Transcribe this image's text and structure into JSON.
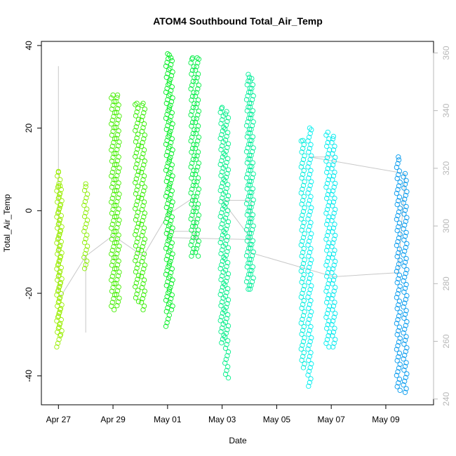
{
  "chart_data": {
    "type": "scatter",
    "title": "ATOM4 Southbound Total_Air_Temp",
    "xlabel": "Date",
    "ylabel": "Total_Air_Temp",
    "x_tick_labels": [
      "Apr 27",
      "Apr 29",
      "May 01",
      "May 03",
      "May 05",
      "May 07",
      "May 09"
    ],
    "x_ticks": [
      "2018-04-27",
      "2018-04-29",
      "2018-05-01",
      "2018-05-03",
      "2018-05-05",
      "2018-05-07",
      "2018-05-09"
    ],
    "xlim": [
      "2018-04-26T09:00",
      "2018-05-10T18:00"
    ],
    "ylim": [
      -47,
      41
    ],
    "y_ticks": [
      -40,
      -20,
      0,
      20,
      40
    ],
    "y_tick_labels": [
      "-40",
      "-20",
      "0",
      "20",
      "40"
    ],
    "right_axis": {
      "ticks": [
        240,
        260,
        280,
        300,
        320,
        340,
        360
      ],
      "tick_labels": [
        "240",
        "260",
        "280",
        "300",
        "320",
        "340",
        "360"
      ],
      "ylim": [
        238,
        364
      ],
      "color": "#b8b8b8"
    },
    "marker": "open-circle",
    "series": [
      {
        "x": "2018-04-27T00:00",
        "y_range": [
          -33,
          9.5
        ],
        "color": "#99ee00"
      },
      {
        "x": "2018-04-27T01:30",
        "y_range": [
          -30,
          6
        ],
        "color": "#99ee00"
      },
      {
        "x": "2018-04-28T00:00",
        "y_range": [
          -14,
          6.5
        ],
        "color": "#8aee00"
      },
      {
        "x": "2018-04-29T00:00",
        "y_range": [
          -24,
          28
        ],
        "color": "#44ee00"
      },
      {
        "x": "2018-04-29T04:00",
        "y_range": [
          -23,
          28
        ],
        "color": "#44ee00"
      },
      {
        "x": "2018-04-29T21:00",
        "y_range": [
          -22,
          26
        ],
        "color": "#33ee00"
      },
      {
        "x": "2018-04-30T02:30",
        "y_range": [
          -24,
          26
        ],
        "color": "#33ee00"
      },
      {
        "x": "2018-05-01T00:00",
        "y_range": [
          -28,
          38
        ],
        "color": "#00ee22"
      },
      {
        "x": "2018-05-01T03:00",
        "y_range": [
          -24,
          37
        ],
        "color": "#00ee22"
      },
      {
        "x": "2018-05-01T22:00",
        "y_range": [
          -11,
          37
        ],
        "color": "#00ee44"
      },
      {
        "x": "2018-05-02T02:00",
        "y_range": [
          -11,
          37
        ],
        "color": "#00ee44"
      },
      {
        "x": "2018-05-03T00:00",
        "y_range": [
          -32,
          25
        ],
        "color": "#00ee88"
      },
      {
        "x": "2018-05-03T04:00",
        "y_range": [
          -40.5,
          24
        ],
        "color": "#00ee88"
      },
      {
        "x": "2018-05-03T23:00",
        "y_range": [
          -19,
          33
        ],
        "color": "#00ee99"
      },
      {
        "x": "2018-05-04T02:00",
        "y_range": [
          -19,
          32
        ],
        "color": "#00ee99"
      },
      {
        "x": "2018-05-05T23:00",
        "y_range": [
          -38,
          17
        ],
        "color": "#00eedd"
      },
      {
        "x": "2018-05-06T05:00",
        "y_range": [
          -42.5,
          20
        ],
        "color": "#00eeee"
      },
      {
        "x": "2018-05-06T21:00",
        "y_range": [
          -33,
          19
        ],
        "color": "#00eeee"
      },
      {
        "x": "2018-05-07T02:00",
        "y_range": [
          -33,
          18
        ],
        "color": "#00e8ee"
      },
      {
        "x": "2018-05-09T11:00",
        "y_range": [
          -43.5,
          13
        ],
        "color": "#0099ee"
      },
      {
        "x": "2018-05-09T17:00",
        "y_range": [
          -44,
          9
        ],
        "color": "#0099ee"
      }
    ],
    "trace": {
      "color": "#c8c8c8",
      "points": [
        {
          "x": "2018-04-27T00:00",
          "y": 35
        },
        {
          "x": "2018-04-27T00:00",
          "y": -20
        },
        {
          "x": "2018-04-27T01:30",
          "y": -21
        },
        {
          "x": "2018-04-28T00:00",
          "y": -11
        },
        {
          "x": "2018-04-28T00:00",
          "y": -29.5
        },
        {
          "x": "2018-04-28T00:00",
          "y": -11
        },
        {
          "x": "2018-04-29T00:00",
          "y": -6
        },
        {
          "x": "2018-04-30T02:30",
          "y": -11
        },
        {
          "x": "2018-05-01T00:00",
          "y": -1
        },
        {
          "x": "2018-05-01T22:00",
          "y": 3
        },
        {
          "x": "2018-05-02T02:00",
          "y": -8
        },
        {
          "x": "2018-05-01T22:00",
          "y": -5
        },
        {
          "x": "2018-05-01T00:00",
          "y": -5
        },
        {
          "x": "2018-05-01T00:00",
          "y": -6.5
        },
        {
          "x": "2018-05-04T02:00",
          "y": -7
        },
        {
          "x": "2018-05-03T00:00",
          "y": 2.5
        },
        {
          "x": "2018-05-04T02:00",
          "y": 2.5
        },
        {
          "x": "2018-05-03T23:00",
          "y": -10
        },
        {
          "x": "2018-05-07T02:00",
          "y": -16
        },
        {
          "x": "2018-05-09T11:00",
          "y": -15
        },
        {
          "x": "2018-05-09T17:00",
          "y": 9
        },
        {
          "x": "2018-05-06T05:00",
          "y": 13
        },
        {
          "x": "2018-05-07T02:00",
          "y": 13
        }
      ]
    },
    "grid": false,
    "legend": "none"
  }
}
